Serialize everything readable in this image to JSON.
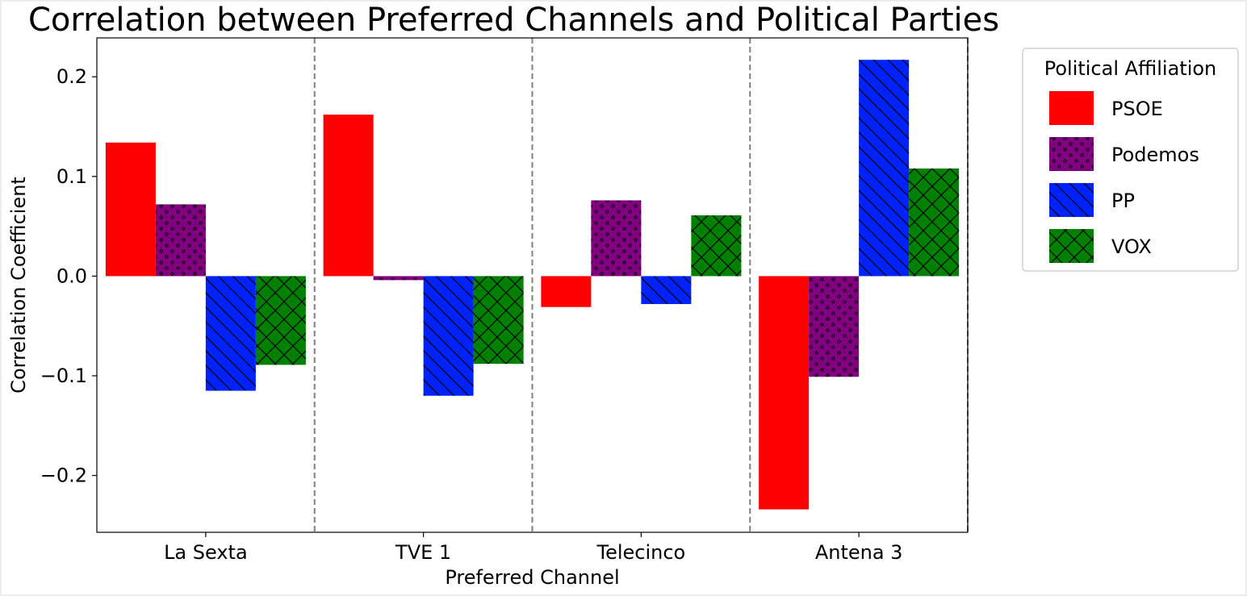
{
  "chart_data": {
    "type": "bar",
    "title": "Correlation between Preferred Channels and Political Parties",
    "xlabel": "Preferred Channel",
    "ylabel": "Correlation Coefficient",
    "categories": [
      "La Sexta",
      "TVE 1",
      "Telecinco",
      "Antena 3"
    ],
    "ylim": [
      -0.257,
      0.239
    ],
    "yticks": [
      -0.2,
      -0.1,
      0.0,
      0.1,
      0.2
    ],
    "ytick_labels": [
      "−0.2",
      "−0.1",
      "0.0",
      "0.1",
      "0.2"
    ],
    "separators": "dashed vertical lines between channels",
    "grid": false,
    "legend": {
      "title": "Political Affiliation",
      "placement": "outside-right-top"
    },
    "series": [
      {
        "name": "PSOE",
        "color": "#ff0000",
        "hatch": "none",
        "values": [
          0.134,
          0.162,
          -0.031,
          -0.234
        ]
      },
      {
        "name": "Podemos",
        "color": "#800080",
        "hatch": "small-circles",
        "values": [
          0.072,
          -0.004,
          0.076,
          -0.101
        ]
      },
      {
        "name": "PP",
        "color": "#0022ff",
        "hatch": "backslash",
        "values": [
          -0.115,
          -0.12,
          -0.028,
          0.217
        ]
      },
      {
        "name": "VOX",
        "color": "#008000",
        "hatch": "crosshatch",
        "values": [
          -0.089,
          -0.088,
          0.061,
          0.108
        ]
      }
    ]
  }
}
